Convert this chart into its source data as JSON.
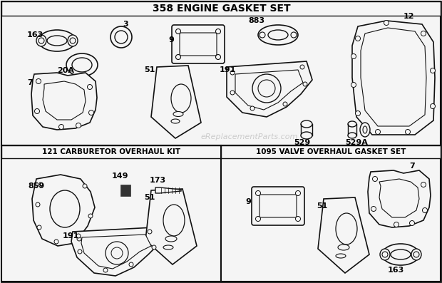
{
  "title_main": "358 ENGINE GASKET SET",
  "title_bottom_left": "121 CARBURETOR OVERHAUL KIT",
  "title_bottom_right": "1095 VALVE OVERHAUL GASKET SET",
  "watermark": "eReplacementParts.com",
  "bg_color": "#f5f5f5",
  "border_color": "#111111",
  "line_color": "#111111",
  "text_color": "#000000",
  "fig_width": 6.2,
  "fig_height": 3.97,
  "dpi": 100
}
